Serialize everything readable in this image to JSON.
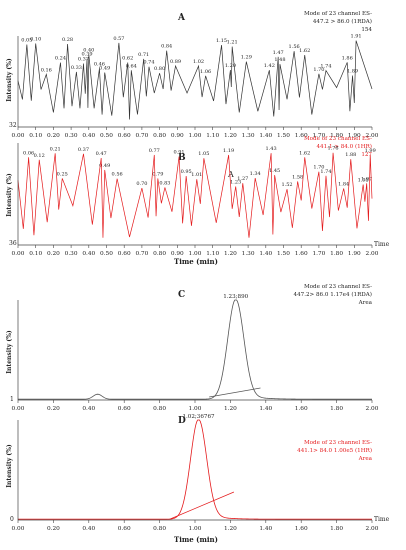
{
  "chart_data": [
    {
      "panel": "A",
      "type": "line",
      "color": "#333333",
      "annotation": [
        "Mode of 23 channel ES-",
        "447.2 > 86.0 (1RDA)",
        "154"
      ],
      "ylabel": "Intensity (%)",
      "y_min_label": "32",
      "x_ticks": [
        "0.00",
        "0.10",
        "0.20",
        "0.30",
        "0.40",
        "0.50",
        "0.60",
        "0.70",
        "0.80",
        "0.90",
        "1.00",
        "1.10",
        "1.20",
        "1.30",
        "1.40",
        "1.50",
        "1.60",
        "1.70",
        "1.80",
        "1.90",
        "2.00"
      ],
      "peak_labels": [
        {
          "x": 0.05,
          "label": "0.05"
        },
        {
          "x": 0.1,
          "label": "0.10"
        },
        {
          "x": 0.16,
          "label": "0.16"
        },
        {
          "x": 0.24,
          "label": "0.24"
        },
        {
          "x": 0.28,
          "label": "0.28"
        },
        {
          "x": 0.33,
          "label": "0.33"
        },
        {
          "x": 0.37,
          "label": "0.37"
        },
        {
          "x": 0.39,
          "label": "0.39"
        },
        {
          "x": 0.4,
          "label": "0.40"
        },
        {
          "x": 0.46,
          "label": "0.46"
        },
        {
          "x": 0.49,
          "label": "0.49"
        },
        {
          "x": 0.57,
          "label": "0.57"
        },
        {
          "x": 0.62,
          "label": "0.62"
        },
        {
          "x": 0.64,
          "label": "0.64"
        },
        {
          "x": 0.71,
          "label": "0.71"
        },
        {
          "x": 0.74,
          "label": "0.74"
        },
        {
          "x": 0.8,
          "label": "0.80"
        },
        {
          "x": 0.84,
          "label": "0.84"
        },
        {
          "x": 0.89,
          "label": "0.89"
        },
        {
          "x": 1.02,
          "label": "1.02"
        },
        {
          "x": 1.06,
          "label": "1.06"
        },
        {
          "x": 1.15,
          "label": "1.15"
        },
        {
          "x": 1.2,
          "label": "1.20"
        },
        {
          "x": 1.21,
          "label": "1.21"
        },
        {
          "x": 1.29,
          "label": "1.29"
        },
        {
          "x": 1.42,
          "label": "1.42"
        },
        {
          "x": 1.47,
          "label": "1.47"
        },
        {
          "x": 1.48,
          "label": "1.48"
        },
        {
          "x": 1.56,
          "label": "1.56"
        },
        {
          "x": 1.62,
          "label": "1.62"
        },
        {
          "x": 1.7,
          "label": "1.70"
        },
        {
          "x": 1.74,
          "label": "1.74"
        },
        {
          "x": 1.86,
          "label": "1.86"
        },
        {
          "x": 1.89,
          "label": "1.89"
        },
        {
          "x": 1.91,
          "label": "1.91"
        }
      ]
    },
    {
      "panel": "B",
      "type": "line",
      "color": "#e41a1c",
      "annotation": [
        "Mode of 23 channel ES-",
        "441.1 > 84.0 (1HR)",
        "127"
      ],
      "ylabel": "Intensity (%)",
      "xlabel": "Time (min)",
      "axis_end_label": "Time",
      "y_min_label": "36",
      "inner_label": "A",
      "x_ticks": [
        "0.00",
        "0.10",
        "0.20",
        "0.30",
        "0.40",
        "0.50",
        "0.60",
        "0.70",
        "0.80",
        "0.90",
        "1.00",
        "1.10",
        "1.20",
        "1.30",
        "1.40",
        "1.50",
        "1.60",
        "1.70",
        "1.80",
        "1.90",
        "2.00"
      ],
      "peak_labels": [
        {
          "x": 0.06,
          "label": "0.06"
        },
        {
          "x": 0.12,
          "label": "0.12"
        },
        {
          "x": 0.21,
          "label": "0.21"
        },
        {
          "x": 0.25,
          "label": "0.25"
        },
        {
          "x": 0.37,
          "label": "0.37"
        },
        {
          "x": 0.47,
          "label": "0.47"
        },
        {
          "x": 0.49,
          "label": "0.49"
        },
        {
          "x": 0.56,
          "label": "0.56"
        },
        {
          "x": 0.7,
          "label": "0.70"
        },
        {
          "x": 0.77,
          "label": "0.77"
        },
        {
          "x": 0.79,
          "label": "0.79"
        },
        {
          "x": 0.83,
          "label": "0.83"
        },
        {
          "x": 0.91,
          "label": "0.91"
        },
        {
          "x": 0.95,
          "label": "0.95"
        },
        {
          "x": 1.01,
          "label": "1.01"
        },
        {
          "x": 1.05,
          "label": "1.05"
        },
        {
          "x": 1.19,
          "label": "1.19"
        },
        {
          "x": 1.23,
          "label": "1.23"
        },
        {
          "x": 1.27,
          "label": "1.27"
        },
        {
          "x": 1.34,
          "label": "1.34"
        },
        {
          "x": 1.43,
          "label": "1.43"
        },
        {
          "x": 1.45,
          "label": "1.45"
        },
        {
          "x": 1.52,
          "label": "1.52"
        },
        {
          "x": 1.58,
          "label": "1.58"
        },
        {
          "x": 1.62,
          "label": "1.62"
        },
        {
          "x": 1.7,
          "label": "1.70"
        },
        {
          "x": 1.74,
          "label": "1.74"
        },
        {
          "x": 1.78,
          "label": "1.78"
        },
        {
          "x": 1.84,
          "label": "1.84"
        },
        {
          "x": 1.88,
          "label": "1.88"
        },
        {
          "x": 1.95,
          "label": "1.95"
        },
        {
          "x": 1.97,
          "label": "1.97"
        },
        {
          "x": 1.99,
          "label": "1.99"
        }
      ]
    },
    {
      "panel": "C",
      "type": "line",
      "color": "#555555",
      "annotation": [
        "Mode of 23 channel ES-",
        "447.2> 86.0  1.17e4 (1RDA)",
        "Area"
      ],
      "ylabel": "Intensity (%)",
      "y_min_label": "1",
      "x_ticks": [
        "0.00",
        "0.20",
        "0.40",
        "0.60",
        "0.80",
        "1.00",
        "1.20",
        "1.40",
        "1.60",
        "1.80",
        "2.00"
      ],
      "peak_labels": [
        {
          "x": 1.23,
          "label": "1.23;890"
        }
      ],
      "peak": {
        "center": 1.23,
        "width": 0.045,
        "height": 100
      },
      "baseline_segment": [
        [
          1.08,
          3
        ],
        [
          1.37,
          12
        ]
      ],
      "minor_bump": {
        "center": 0.45,
        "height": 5
      }
    },
    {
      "panel": "D",
      "type": "line",
      "color": "#e41a1c",
      "annotation": [
        "Mode of 23 channel ES-",
        "441.1> 84.0  1.00e5 (1HR)",
        "Area"
      ],
      "ylabel": "Intensity (%)",
      "xlabel": "Time (min)",
      "axis_end_label": "Time",
      "y_min_label": "0",
      "x_ticks": [
        "0.00",
        "0.20",
        "0.40",
        "0.60",
        "0.80",
        "1.00",
        "1.20",
        "1.40",
        "1.60",
        "1.80",
        "2.00"
      ],
      "peak_labels": [
        {
          "x": 1.02,
          "label": "1.02;36767"
        }
      ],
      "peak": {
        "center": 1.02,
        "width": 0.045,
        "height": 100
      },
      "baseline_segment": [
        [
          0.86,
          1
        ],
        [
          1.22,
          28
        ]
      ]
    }
  ]
}
